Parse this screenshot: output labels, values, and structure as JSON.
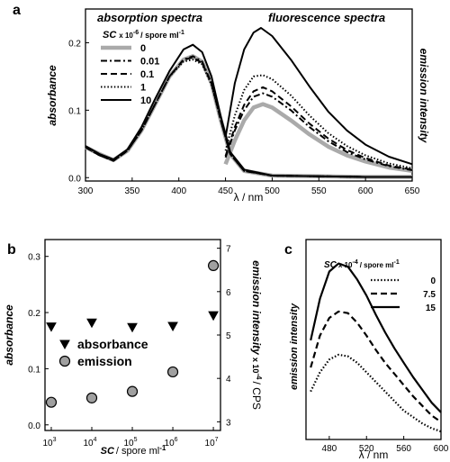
{
  "chart_data": [
    {
      "panel": "a",
      "type": "line",
      "annotations": [
        "absorption spectra",
        "fluorescence spectra"
      ],
      "xlabel": "λ / nm",
      "ylabel": "absorbance",
      "ylabel_right": "emission intensity",
      "xlim": [
        300,
        650
      ],
      "ylim": [
        -0.005,
        0.25
      ],
      "xticks": [
        300,
        350,
        400,
        450,
        500,
        550,
        600,
        650
      ],
      "yticks": [
        0.0,
        0.1,
        0.2
      ],
      "legend_title_pre": "SC",
      "legend_title_unit": "x 10",
      "legend_title_exp": "-6",
      "legend_title_post": "/ spore ml",
      "legend_title_post_exp": "-1",
      "legend_position": "top-left",
      "series": [
        {
          "name": "0",
          "style": "thick-gray",
          "color": "#aaaaaa",
          "absorption": [
            [
              300,
              0.045
            ],
            [
              315,
              0.035
            ],
            [
              330,
              0.026
            ],
            [
              345,
              0.04
            ],
            [
              360,
              0.07
            ],
            [
              375,
              0.11
            ],
            [
              390,
              0.15
            ],
            [
              405,
              0.175
            ],
            [
              415,
              0.18
            ],
            [
              425,
              0.172
            ],
            [
              435,
              0.14
            ],
            [
              445,
              0.085
            ],
            [
              455,
              0.035
            ],
            [
              470,
              0.01
            ],
            [
              500,
              0.003
            ],
            [
              600,
              0.001
            ],
            [
              650,
              0.001
            ]
          ],
          "emission": [
            [
              450,
              0.02
            ],
            [
              460,
              0.055
            ],
            [
              470,
              0.085
            ],
            [
              480,
              0.104
            ],
            [
              490,
              0.109
            ],
            [
              500,
              0.104
            ],
            [
              520,
              0.085
            ],
            [
              540,
              0.064
            ],
            [
              560,
              0.046
            ],
            [
              580,
              0.033
            ],
            [
              600,
              0.024
            ],
            [
              625,
              0.015
            ],
            [
              650,
              0.01
            ]
          ]
        },
        {
          "name": "0.01",
          "style": "dash-dot",
          "color": "#000000",
          "absorption": [
            [
              300,
              0.045
            ],
            [
              315,
              0.033
            ],
            [
              330,
              0.025
            ],
            [
              345,
              0.04
            ],
            [
              360,
              0.07
            ],
            [
              375,
              0.11
            ],
            [
              390,
              0.15
            ],
            [
              405,
              0.175
            ],
            [
              415,
              0.18
            ],
            [
              425,
              0.172
            ],
            [
              435,
              0.14
            ],
            [
              445,
              0.085
            ],
            [
              455,
              0.035
            ],
            [
              470,
              0.01
            ],
            [
              500,
              0.003
            ],
            [
              600,
              0.001
            ],
            [
              650,
              0.001
            ]
          ],
          "emission": [
            [
              450,
              0.03
            ],
            [
              460,
              0.07
            ],
            [
              470,
              0.1
            ],
            [
              480,
              0.12
            ],
            [
              490,
              0.125
            ],
            [
              500,
              0.12
            ],
            [
              520,
              0.1
            ],
            [
              540,
              0.075
            ],
            [
              560,
              0.054
            ],
            [
              580,
              0.038
            ],
            [
              600,
              0.027
            ],
            [
              625,
              0.017
            ],
            [
              650,
              0.011
            ]
          ]
        },
        {
          "name": "0.1",
          "style": "dash",
          "color": "#000000",
          "absorption": [
            [
              300,
              0.045
            ],
            [
              315,
              0.033
            ],
            [
              330,
              0.025
            ],
            [
              345,
              0.04
            ],
            [
              360,
              0.07
            ],
            [
              375,
              0.11
            ],
            [
              390,
              0.15
            ],
            [
              405,
              0.175
            ],
            [
              415,
              0.178
            ],
            [
              425,
              0.17
            ],
            [
              435,
              0.14
            ],
            [
              445,
              0.085
            ],
            [
              455,
              0.035
            ],
            [
              470,
              0.01
            ],
            [
              500,
              0.003
            ],
            [
              600,
              0.001
            ],
            [
              650,
              0.001
            ]
          ],
          "emission": [
            [
              450,
              0.032
            ],
            [
              460,
              0.075
            ],
            [
              470,
              0.108
            ],
            [
              480,
              0.128
            ],
            [
              490,
              0.134
            ],
            [
              500,
              0.128
            ],
            [
              520,
              0.106
            ],
            [
              540,
              0.08
            ],
            [
              560,
              0.058
            ],
            [
              580,
              0.041
            ],
            [
              600,
              0.029
            ],
            [
              625,
              0.018
            ],
            [
              650,
              0.012
            ]
          ]
        },
        {
          "name": "1",
          "style": "dotted",
          "color": "#000000",
          "absorption": [
            [
              300,
              0.045
            ],
            [
              315,
              0.033
            ],
            [
              330,
              0.025
            ],
            [
              345,
              0.04
            ],
            [
              360,
              0.07
            ],
            [
              375,
              0.11
            ],
            [
              390,
              0.15
            ],
            [
              405,
              0.172
            ],
            [
              415,
              0.175
            ],
            [
              425,
              0.168
            ],
            [
              435,
              0.138
            ],
            [
              445,
              0.085
            ],
            [
              455,
              0.035
            ],
            [
              470,
              0.01
            ],
            [
              500,
              0.003
            ],
            [
              600,
              0.001
            ],
            [
              650,
              0.001
            ]
          ],
          "emission": [
            [
              450,
              0.04
            ],
            [
              460,
              0.092
            ],
            [
              470,
              0.13
            ],
            [
              480,
              0.15
            ],
            [
              490,
              0.152
            ],
            [
              500,
              0.146
            ],
            [
              520,
              0.122
            ],
            [
              540,
              0.092
            ],
            [
              560,
              0.066
            ],
            [
              580,
              0.047
            ],
            [
              600,
              0.033
            ],
            [
              625,
              0.021
            ],
            [
              650,
              0.014
            ]
          ]
        },
        {
          "name": "10",
          "style": "solid",
          "color": "#000000",
          "absorption": [
            [
              300,
              0.047
            ],
            [
              315,
              0.035
            ],
            [
              330,
              0.027
            ],
            [
              345,
              0.042
            ],
            [
              360,
              0.075
            ],
            [
              375,
              0.118
            ],
            [
              390,
              0.158
            ],
            [
              405,
              0.19
            ],
            [
              415,
              0.197
            ],
            [
              425,
              0.186
            ],
            [
              435,
              0.15
            ],
            [
              445,
              0.09
            ],
            [
              455,
              0.038
            ],
            [
              470,
              0.012
            ],
            [
              500,
              0.003
            ],
            [
              600,
              0.001
            ],
            [
              650,
              0.001
            ]
          ],
          "emission": [
            [
              450,
              0.06
            ],
            [
              460,
              0.14
            ],
            [
              470,
              0.19
            ],
            [
              480,
              0.215
            ],
            [
              488,
              0.222
            ],
            [
              500,
              0.21
            ],
            [
              520,
              0.175
            ],
            [
              540,
              0.135
            ],
            [
              560,
              0.098
            ],
            [
              580,
              0.07
            ],
            [
              600,
              0.049
            ],
            [
              625,
              0.031
            ],
            [
              650,
              0.02
            ]
          ]
        }
      ]
    },
    {
      "panel": "b",
      "type": "scatter",
      "xlabel_pre": "SC",
      "xlabel_post": "/ spore ml",
      "xlabel_exp": "-1",
      "ylabel": "absorbance",
      "ylabel_right_pre": "emission intensity",
      "ylabel_right_unit": "x 10",
      "ylabel_right_exp": "-4",
      "ylabel_right_post": "/ CPS",
      "xscale": "log",
      "xlim": [
        700,
        15000000
      ],
      "ylim": [
        -0.01,
        0.33
      ],
      "ylim_right": [
        2.8,
        7.2
      ],
      "xticks": [
        {
          "base": "10",
          "exp": "3"
        },
        {
          "base": "10",
          "exp": "4"
        },
        {
          "base": "10",
          "exp": "5"
        },
        {
          "base": "10",
          "exp": "6"
        },
        {
          "base": "10",
          "exp": "7"
        }
      ],
      "yticks": [
        0.0,
        0.1,
        0.2,
        0.3
      ],
      "yticks_right": [
        3,
        4,
        5,
        6,
        7
      ],
      "legend_position": "center-left",
      "series": [
        {
          "name": "absorbance",
          "marker": "triangle-down",
          "color": "#000000",
          "x": [
            1000,
            10000,
            100000,
            1000000,
            10000000
          ],
          "y": [
            0.175,
            0.182,
            0.174,
            0.176,
            0.195
          ]
        },
        {
          "name": "emission",
          "marker": "circle",
          "color": "#a0a0a0",
          "axis": "right",
          "x": [
            1000,
            10000,
            100000,
            1000000,
            10000000
          ],
          "y": [
            3.45,
            3.55,
            3.7,
            4.15,
            6.6
          ]
        }
      ]
    },
    {
      "panel": "c",
      "type": "line",
      "xlabel": "λ / nm",
      "ylabel": "emission intensity",
      "xlim": [
        455,
        600
      ],
      "ylim": [
        0,
        1.25
      ],
      "xticks": [
        480,
        520,
        560,
        600
      ],
      "legend_title_pre": "SC",
      "legend_title_unit": "x 10",
      "legend_title_exp": "-4",
      "legend_title_post": "/ spore ml",
      "legend_title_post_exp": "-1",
      "legend_position": "top-right",
      "series": [
        {
          "name": "0",
          "style": "dotted",
          "color": "#000000",
          "x": [
            460,
            470,
            480,
            490,
            500,
            510,
            520,
            530,
            540,
            550,
            560,
            570,
            580,
            590,
            600
          ],
          "y": [
            0.3,
            0.42,
            0.5,
            0.53,
            0.52,
            0.48,
            0.42,
            0.36,
            0.3,
            0.24,
            0.18,
            0.14,
            0.1,
            0.07,
            0.05
          ]
        },
        {
          "name": "7.5",
          "style": "dash",
          "color": "#000000",
          "x": [
            460,
            470,
            480,
            490,
            500,
            510,
            520,
            530,
            540,
            550,
            560,
            570,
            580,
            590,
            600
          ],
          "y": [
            0.45,
            0.65,
            0.76,
            0.8,
            0.79,
            0.73,
            0.65,
            0.56,
            0.48,
            0.41,
            0.34,
            0.27,
            0.21,
            0.15,
            0.11
          ]
        },
        {
          "name": "15",
          "style": "solid",
          "color": "#000000",
          "x": [
            460,
            470,
            480,
            490,
            500,
            510,
            520,
            530,
            540,
            550,
            560,
            570,
            580,
            590,
            600
          ],
          "y": [
            0.62,
            0.88,
            1.05,
            1.1,
            1.08,
            1.0,
            0.9,
            0.78,
            0.67,
            0.57,
            0.48,
            0.39,
            0.31,
            0.23,
            0.17
          ]
        }
      ]
    }
  ]
}
